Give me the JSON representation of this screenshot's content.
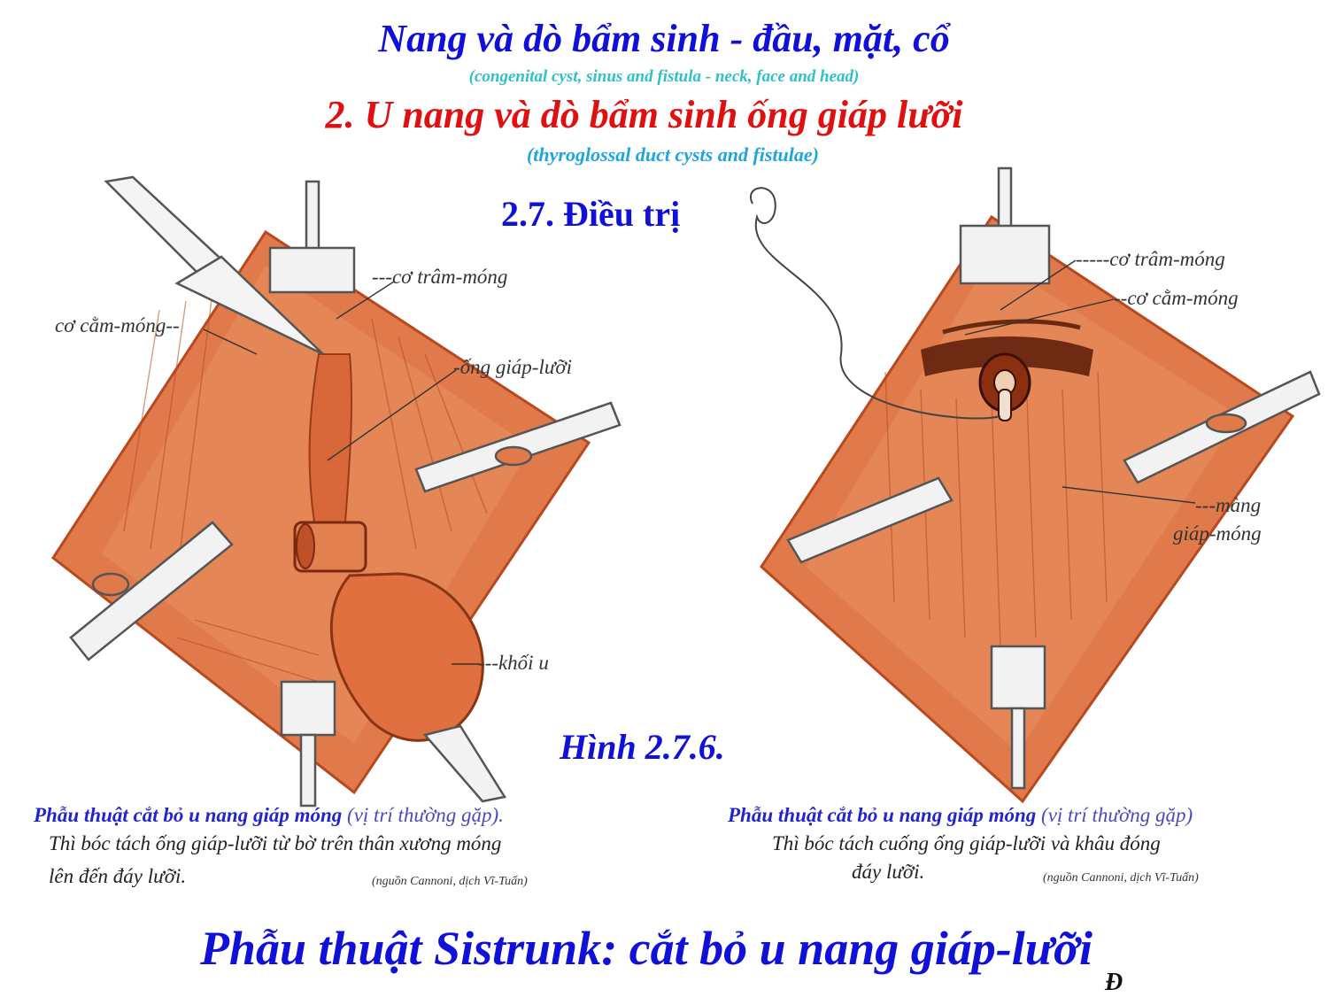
{
  "header": {
    "title": "Nang và dò bẩm sinh - đầu, mặt, cổ",
    "title_en": "(congenital cyst, sinus and fistula - neck, face and head)",
    "subtitle": "2. U nang và dò bẩm sinh ống giáp lưỡi",
    "subtitle_en": "(thyroglossal duct cysts and fistulae)",
    "section": "2.7. Điều trị"
  },
  "figure_label": "Hình 2.7.6.",
  "left_figure": {
    "labels": {
      "stylohyoid": "---cơ trâm-móng",
      "geniohyoid": "cơ cằm-móng--",
      "duct": "-ống giáp-lưỡi",
      "mass": "---khối u"
    },
    "caption": {
      "title": "Phẫu thuật cắt bỏ u nang giáp móng",
      "title_paren": "(vị trí thường gặp).",
      "line1": "Thì bóc tách ống giáp-lưỡi từ bờ trên thân xương móng",
      "line2": "lên đến đáy lưỡi.",
      "source": "(nguồn Cannoni, dịch Vĩ-Tuấn)"
    }
  },
  "right_figure": {
    "labels": {
      "stylohyoid": "-----cơ trâm-móng",
      "geniohyoid": "--cơ cằm-móng",
      "membrane1": "---màng",
      "membrane2": "giáp-móng"
    },
    "caption": {
      "title": "Phẫu thuật cắt bỏ u nang giáp móng",
      "title_paren": "(vị trí thường gặp)",
      "line1": "Thì bóc tách cuống ống giáp-lưỡi và khâu đóng",
      "line2": "đáy lưỡi.",
      "source": "(nguồn Cannoni, dịch Vĩ-Tuấn)"
    }
  },
  "footer": {
    "title": "Phẫu thuật Sistrunk: cắt bỏ u nang giáp-lưỡi",
    "corner": "Đ"
  },
  "colors": {
    "tissue": "#e07a4a",
    "tissue_dark": "#c0502a",
    "instrument": "#f2f2f2"
  }
}
